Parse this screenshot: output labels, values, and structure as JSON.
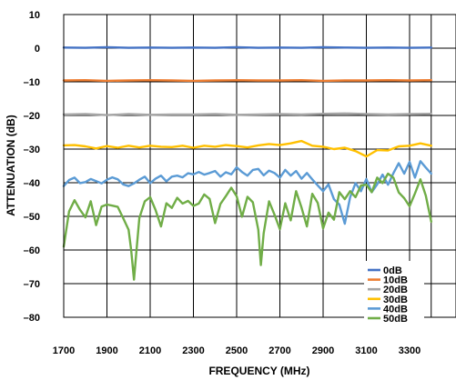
{
  "chart_data": {
    "type": "line",
    "title": "",
    "xlabel": "FREQUENCY (MHz)",
    "ylabel": "ATTENUATION (dB)",
    "xlim": [
      1700,
      3400
    ],
    "ylim": [
      -80,
      10
    ],
    "x_ticks": [
      1700,
      1900,
      2100,
      2300,
      2500,
      2700,
      2900,
      3100,
      3300
    ],
    "y_ticks": [
      10,
      0,
      -10,
      -20,
      -30,
      -40,
      -50,
      -60,
      -70,
      -80
    ],
    "x_tick_labels": [
      "1700",
      "1900",
      "2100",
      "2300",
      "2500",
      "2700",
      "2900",
      "3100",
      "3300"
    ],
    "y_tick_labels": [
      "10",
      "0",
      "–10",
      "–20",
      "–30",
      "–40",
      "–50",
      "–60",
      "–70",
      "–80"
    ],
    "grid": true,
    "legend_position": "bottom-right",
    "series": [
      {
        "name": "0dB",
        "color": "#4472C4",
        "x": [
          1700,
          1800,
          1900,
          2000,
          2100,
          2200,
          2300,
          2400,
          2500,
          2600,
          2700,
          2800,
          2900,
          3000,
          3100,
          3200,
          3300,
          3400
        ],
        "y": [
          0.2,
          0.1,
          0.3,
          0.1,
          0.2,
          0.1,
          0.2,
          0.1,
          0.3,
          0.1,
          0.2,
          0.1,
          0.3,
          0.2,
          0.1,
          0.2,
          0.1,
          0.2
        ]
      },
      {
        "name": "10dB",
        "color": "#ED7D31",
        "x": [
          1700,
          1800,
          1900,
          2000,
          2100,
          2200,
          2300,
          2400,
          2500,
          2600,
          2700,
          2800,
          2900,
          3000,
          3100,
          3200,
          3300,
          3400
        ],
        "y": [
          -9.6,
          -9.5,
          -9.7,
          -9.6,
          -9.5,
          -9.6,
          -9.7,
          -9.6,
          -9.5,
          -9.6,
          -9.6,
          -9.5,
          -9.7,
          -9.6,
          -9.6,
          -9.5,
          -9.6,
          -9.5
        ]
      },
      {
        "name": "20dB",
        "color": "#A5A5A5",
        "x": [
          1700,
          1800,
          1900,
          2000,
          2100,
          2200,
          2300,
          2400,
          2500,
          2600,
          2700,
          2800,
          2900,
          3000,
          3100,
          3200,
          3300,
          3400
        ],
        "y": [
          -19.7,
          -19.6,
          -19.9,
          -19.6,
          -19.8,
          -19.7,
          -19.7,
          -19.6,
          -19.8,
          -19.7,
          -19.6,
          -19.7,
          -19.5,
          -19.4,
          -19.6,
          -19.7,
          -19.6,
          -19.5
        ]
      },
      {
        "name": "30dB",
        "color": "#FFC000",
        "x": [
          1700,
          1750,
          1800,
          1850,
          1900,
          1950,
          2000,
          2050,
          2100,
          2150,
          2200,
          2250,
          2300,
          2350,
          2400,
          2450,
          2500,
          2550,
          2600,
          2650,
          2700,
          2750,
          2800,
          2850,
          2900,
          2950,
          3000,
          3050,
          3100,
          3150,
          3200,
          3250,
          3300,
          3350,
          3400
        ],
        "y": [
          -28.9,
          -28.8,
          -29.2,
          -29.8,
          -29.1,
          -29.6,
          -29.0,
          -29.5,
          -29.0,
          -29.3,
          -29.4,
          -29.0,
          -29.6,
          -29.0,
          -29.3,
          -28.8,
          -29.1,
          -29.5,
          -28.9,
          -28.5,
          -28.8,
          -28.3,
          -27.6,
          -29.0,
          -29.3,
          -30.0,
          -29.6,
          -30.6,
          -32.2,
          -30.3,
          -30.4,
          -29.2,
          -29.0,
          -28.3,
          -29.0
        ]
      },
      {
        "name": "40dB",
        "color": "#5B9BD5",
        "x": [
          1700,
          1725,
          1750,
          1775,
          1800,
          1825,
          1850,
          1875,
          1900,
          1925,
          1950,
          1975,
          2000,
          2025,
          2050,
          2075,
          2100,
          2125,
          2150,
          2175,
          2200,
          2225,
          2250,
          2275,
          2300,
          2325,
          2350,
          2375,
          2400,
          2425,
          2450,
          2475,
          2500,
          2525,
          2550,
          2575,
          2600,
          2625,
          2650,
          2675,
          2700,
          2725,
          2750,
          2775,
          2800,
          2825,
          2850,
          2875,
          2900,
          2925,
          2950,
          2975,
          3000,
          3025,
          3050,
          3075,
          3100,
          3125,
          3150,
          3175,
          3200,
          3225,
          3250,
          3275,
          3300,
          3325,
          3350,
          3375,
          3400
        ],
        "y": [
          -41.0,
          -39.2,
          -38.5,
          -40.1,
          -39.8,
          -38.9,
          -39.5,
          -40.2,
          -39.1,
          -38.4,
          -39.0,
          -40.5,
          -41.0,
          -40.2,
          -39.1,
          -38.2,
          -40.1,
          -38.8,
          -37.9,
          -39.6,
          -38.2,
          -37.9,
          -38.4,
          -37.2,
          -37.5,
          -36.8,
          -37.6,
          -37.1,
          -36.5,
          -38.2,
          -36.9,
          -37.5,
          -35.4,
          -36.8,
          -37.9,
          -36.2,
          -35.9,
          -37.8,
          -36.4,
          -37.1,
          -38.5,
          -36.2,
          -37.9,
          -36.5,
          -38.8,
          -37.1,
          -39.0,
          -40.8,
          -42.5,
          -40.5,
          -44.9,
          -46.5,
          -52.2,
          -44.3,
          -40.1,
          -42.5,
          -38.9,
          -42.8,
          -40.5,
          -37.6,
          -40.6,
          -37.2,
          -34.2,
          -37.3,
          -33.8,
          -38.5,
          -33.6,
          -35.5,
          -37.3
        ]
      },
      {
        "name": "50dB",
        "color": "#70AD47",
        "x": [
          1700,
          1725,
          1750,
          1775,
          1800,
          1825,
          1850,
          1875,
          1900,
          1925,
          1950,
          1975,
          2000,
          2012,
          2025,
          2037,
          2050,
          2075,
          2100,
          2125,
          2150,
          2175,
          2200,
          2225,
          2250,
          2275,
          2300,
          2325,
          2350,
          2375,
          2400,
          2425,
          2450,
          2475,
          2500,
          2525,
          2550,
          2575,
          2600,
          2612,
          2625,
          2650,
          2675,
          2700,
          2725,
          2750,
          2775,
          2800,
          2825,
          2850,
          2875,
          2900,
          2925,
          2950,
          2975,
          3000,
          3025,
          3050,
          3075,
          3100,
          3125,
          3150,
          3175,
          3200,
          3225,
          3250,
          3275,
          3300,
          3325,
          3350,
          3375,
          3400
        ],
        "y": [
          -59.0,
          -48.5,
          -45.2,
          -48.0,
          -50.3,
          -45.5,
          -52.6,
          -47.1,
          -46.5,
          -46.8,
          -47.2,
          -50.5,
          -54.0,
          -60.0,
          -68.8,
          -60.0,
          -50.5,
          -45.5,
          -44.3,
          -48.1,
          -53.0,
          -46.1,
          -47.5,
          -44.5,
          -46.2,
          -45.4,
          -46.9,
          -46.2,
          -43.5,
          -44.8,
          -52.0,
          -46.3,
          -44.0,
          -41.5,
          -44.0,
          -50.1,
          -44.2,
          -45.8,
          -54.0,
          -64.5,
          -55.0,
          -45.5,
          -49.5,
          -53.8,
          -46.1,
          -51.2,
          -42.5,
          -47.4,
          -53.0,
          -43.3,
          -46.0,
          -53.6,
          -48.9,
          -51.0,
          -42.8,
          -44.9,
          -42.5,
          -44.3,
          -40.8,
          -40.6,
          -42.8,
          -38.5,
          -40.1,
          -37.3,
          -38.5,
          -42.9,
          -44.6,
          -47.0,
          -43.2,
          -39.0,
          -43.8,
          -51.6
        ]
      }
    ]
  }
}
